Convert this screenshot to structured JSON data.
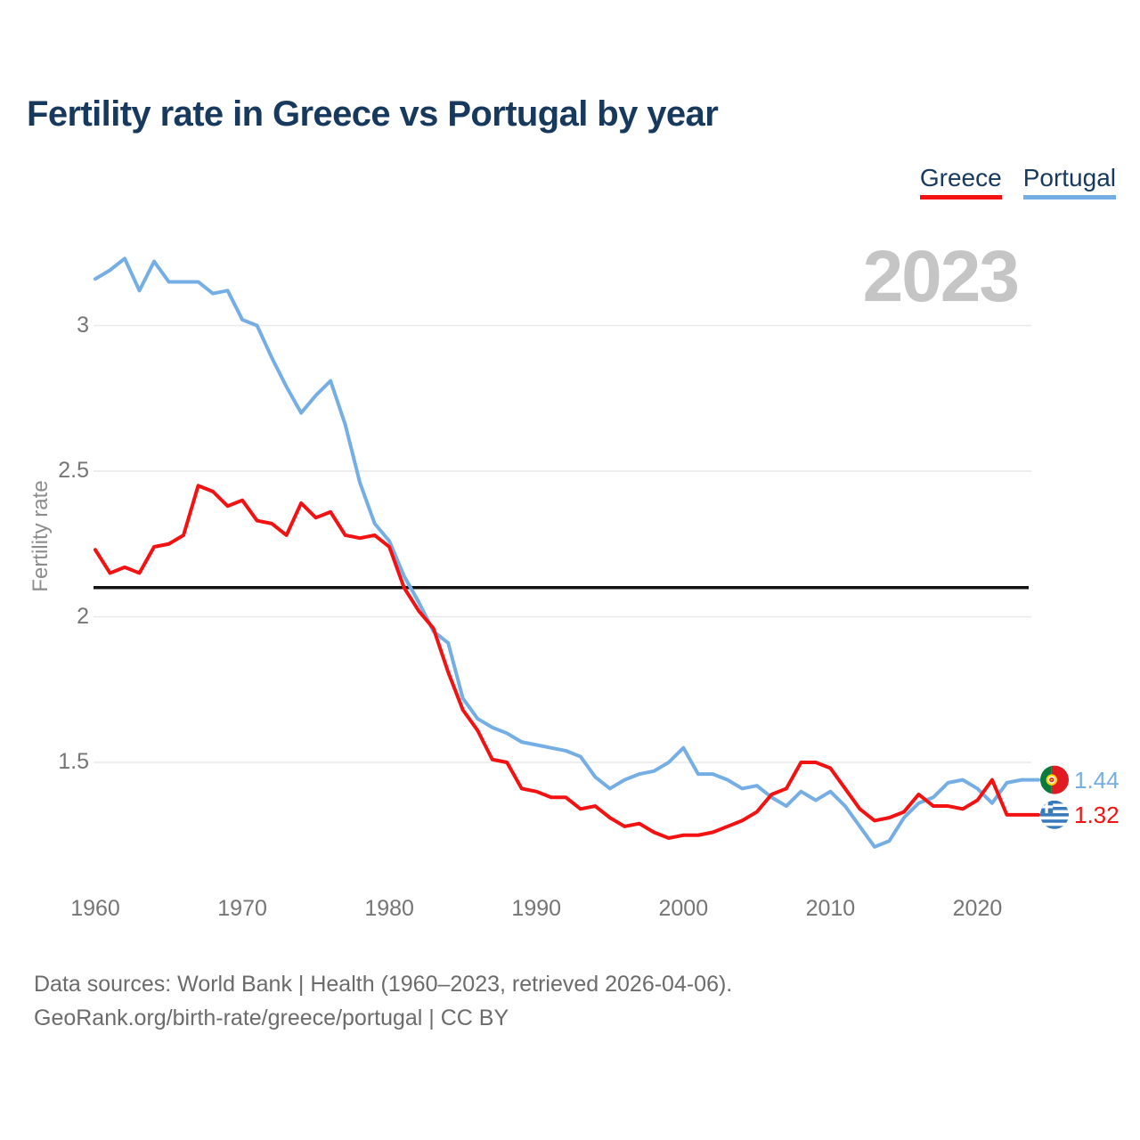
{
  "title": "Fertility rate in Greece vs Portugal by year",
  "watermark": "2023",
  "legend": [
    {
      "label": "Greece",
      "color": "#f31111"
    },
    {
      "label": "Portugal",
      "color": "#74aee4"
    }
  ],
  "y_axis": {
    "label": "Fertility rate",
    "ticks": [
      3,
      2.5,
      2,
      1.5
    ]
  },
  "x_axis": {
    "ticks": [
      1960,
      1970,
      1980,
      1990,
      2000,
      2010,
      2020
    ]
  },
  "reference_line": {
    "value": 2.1,
    "color": "#111111"
  },
  "end_labels": [
    {
      "series": "Portugal",
      "value": "1.44",
      "color": "#74aee4",
      "flag": "portugal-flag"
    },
    {
      "series": "Greece",
      "value": "1.32",
      "color": "#f31111",
      "flag": "greece-flag"
    }
  ],
  "footer": {
    "line1": "Data sources: World Bank | Health (1960–2023, retrieved 2026-04-06).",
    "line2": "GeoRank.org/birth-rate/greece/portugal | CC BY"
  },
  "chart_data": {
    "type": "line",
    "title": "Fertility rate in Greece vs Portugal by year",
    "xlabel": "",
    "ylabel": "Fertility rate",
    "xlim": [
      1960,
      2023
    ],
    "ylim": [
      1.05,
      3.35
    ],
    "grid": "horizontal-only",
    "legend_position": "top-right",
    "reference_line_y": 2.1,
    "x": [
      1960,
      1961,
      1962,
      1963,
      1964,
      1965,
      1966,
      1967,
      1968,
      1969,
      1970,
      1971,
      1972,
      1973,
      1974,
      1975,
      1976,
      1977,
      1978,
      1979,
      1980,
      1981,
      1982,
      1983,
      1984,
      1985,
      1986,
      1987,
      1988,
      1989,
      1990,
      1991,
      1992,
      1993,
      1994,
      1995,
      1996,
      1997,
      1998,
      1999,
      2000,
      2001,
      2002,
      2003,
      2004,
      2005,
      2006,
      2007,
      2008,
      2009,
      2010,
      2011,
      2012,
      2013,
      2014,
      2015,
      2016,
      2017,
      2018,
      2019,
      2020,
      2021,
      2022,
      2023
    ],
    "series": [
      {
        "name": "Portugal",
        "color": "#74aee4",
        "final_value": 1.44,
        "values": [
          3.16,
          3.19,
          3.23,
          3.12,
          3.22,
          3.15,
          3.15,
          3.15,
          3.11,
          3.12,
          3.02,
          3.0,
          2.89,
          2.79,
          2.7,
          2.76,
          2.81,
          2.66,
          2.46,
          2.32,
          2.26,
          2.14,
          2.05,
          1.95,
          1.91,
          1.72,
          1.65,
          1.62,
          1.6,
          1.57,
          1.56,
          1.55,
          1.54,
          1.52,
          1.45,
          1.41,
          1.44,
          1.46,
          1.47,
          1.5,
          1.55,
          1.46,
          1.46,
          1.44,
          1.41,
          1.42,
          1.38,
          1.35,
          1.4,
          1.37,
          1.4,
          1.35,
          1.28,
          1.21,
          1.23,
          1.31,
          1.36,
          1.38,
          1.43,
          1.44,
          1.41,
          1.36,
          1.43,
          1.44
        ]
      },
      {
        "name": "Greece",
        "color": "#f31111",
        "final_value": 1.32,
        "values": [
          2.23,
          2.15,
          2.17,
          2.15,
          2.24,
          2.25,
          2.28,
          2.45,
          2.43,
          2.38,
          2.4,
          2.33,
          2.32,
          2.28,
          2.39,
          2.34,
          2.36,
          2.28,
          2.27,
          2.28,
          2.24,
          2.1,
          2.02,
          1.96,
          1.81,
          1.68,
          1.61,
          1.51,
          1.5,
          1.41,
          1.4,
          1.38,
          1.38,
          1.34,
          1.35,
          1.31,
          1.28,
          1.29,
          1.26,
          1.24,
          1.25,
          1.25,
          1.26,
          1.28,
          1.3,
          1.33,
          1.39,
          1.41,
          1.5,
          1.5,
          1.48,
          1.41,
          1.34,
          1.3,
          1.31,
          1.33,
          1.39,
          1.35,
          1.35,
          1.34,
          1.37,
          1.44,
          1.32,
          1.32
        ]
      }
    ]
  }
}
